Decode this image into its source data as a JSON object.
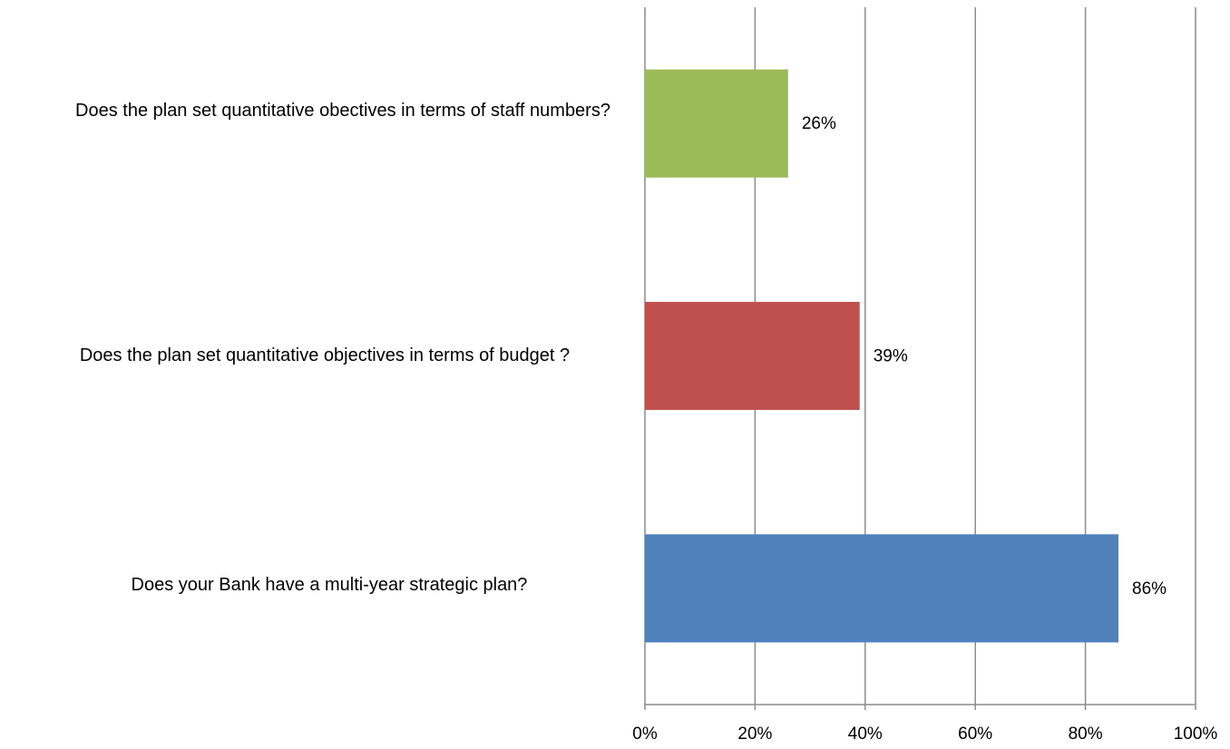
{
  "chart_data": {
    "type": "bar",
    "orientation": "horizontal",
    "title": "",
    "xlabel": "",
    "ylabel": "",
    "categories": [
      "Does your Bank have a multi-year strategic plan?",
      "Does the plan set quantitative objectives in terms of budget ?",
      "Does the plan set quantitative obectives in terms of staff numbers?"
    ],
    "values": [
      86,
      39,
      26
    ],
    "value_labels": [
      "86%",
      "39%",
      "26%"
    ],
    "colors": [
      "#4f81bd",
      "#c0504d",
      "#9bbb59"
    ],
    "xlim": [
      0,
      100
    ],
    "x_ticks": [
      "0%",
      "20%",
      "40%",
      "60%",
      "80%",
      "100%"
    ],
    "grid": "vertical",
    "legend": "none"
  }
}
